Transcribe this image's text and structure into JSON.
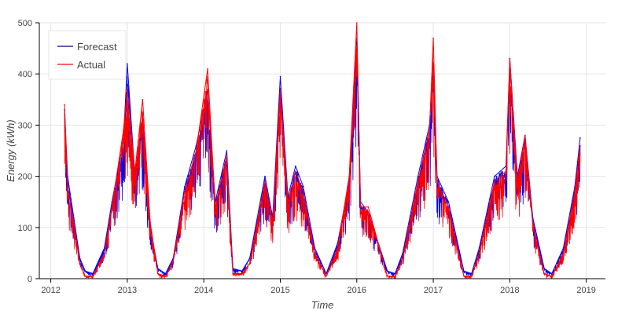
{
  "chart_data": {
    "type": "line",
    "title": "",
    "xlabel": "Time",
    "ylabel": "Energy (kWh)",
    "xlim": [
      2011.85,
      2019.25
    ],
    "ylim": [
      0,
      500
    ],
    "grid": true,
    "legend_position": "top-left",
    "x_ticks": [
      "2012",
      "2013",
      "2014",
      "2015",
      "2016",
      "2017",
      "2018",
      "2019"
    ],
    "y_ticks": [
      "0",
      "100",
      "200",
      "300",
      "400",
      "500"
    ],
    "colors": {
      "forecast": "#0000ff",
      "actual": "#ff0000",
      "legend_forecast_swatch": "#000080"
    },
    "series": [
      {
        "name": "Forecast",
        "color": "#0000ff",
        "x": [
          2012.18,
          2012.22,
          2012.3,
          2012.38,
          2012.45,
          2012.55,
          2012.7,
          2012.8,
          2012.95,
          2013.0,
          2013.1,
          2013.2,
          2013.3,
          2013.4,
          2013.5,
          2013.6,
          2013.75,
          2013.9,
          2014.05,
          2014.15,
          2014.3,
          2014.38,
          2014.5,
          2014.6,
          2014.8,
          2014.9,
          2015.0,
          2015.1,
          2015.2,
          2015.3,
          2015.45,
          2015.6,
          2015.75,
          2015.9,
          2016.0,
          2016.05,
          2016.15,
          2016.4,
          2016.5,
          2016.6,
          2016.8,
          2016.95,
          2017.0,
          2017.05,
          2017.2,
          2017.4,
          2017.5,
          2017.6,
          2017.8,
          2017.95,
          2018.0,
          2018.1,
          2018.2,
          2018.3,
          2018.45,
          2018.55,
          2018.7,
          2018.85,
          2018.92
        ],
        "values": [
          330,
          200,
          120,
          40,
          15,
          10,
          60,
          150,
          270,
          420,
          200,
          320,
          100,
          20,
          10,
          40,
          180,
          260,
          370,
          150,
          250,
          20,
          15,
          40,
          200,
          120,
          395,
          160,
          220,
          180,
          60,
          10,
          70,
          190,
          470,
          150,
          130,
          15,
          10,
          50,
          200,
          300,
          420,
          200,
          150,
          15,
          10,
          60,
          200,
          220,
          430,
          200,
          280,
          120,
          20,
          10,
          60,
          180,
          275
        ]
      },
      {
        "name": "Actual",
        "color": "#ff0000",
        "x": [
          2012.18,
          2012.22,
          2012.3,
          2012.38,
          2012.45,
          2012.55,
          2012.7,
          2012.8,
          2012.95,
          2013.0,
          2013.1,
          2013.2,
          2013.3,
          2013.4,
          2013.5,
          2013.6,
          2013.75,
          2013.9,
          2014.05,
          2014.15,
          2014.3,
          2014.38,
          2014.5,
          2014.6,
          2014.8,
          2014.9,
          2015.0,
          2015.1,
          2015.2,
          2015.3,
          2015.45,
          2015.6,
          2015.75,
          2015.9,
          2016.0,
          2016.05,
          2016.15,
          2016.4,
          2016.5,
          2016.6,
          2016.8,
          2016.95,
          2017.0,
          2017.05,
          2017.2,
          2017.4,
          2017.5,
          2017.6,
          2017.8,
          2017.95,
          2018.0,
          2018.1,
          2018.2,
          2018.3,
          2018.45,
          2018.55,
          2018.7,
          2018.85,
          2018.92
        ],
        "values": [
          340,
          180,
          110,
          30,
          5,
          5,
          50,
          140,
          290,
          370,
          210,
          350,
          110,
          10,
          5,
          35,
          170,
          250,
          410,
          140,
          240,
          10,
          10,
          30,
          190,
          110,
          370,
          150,
          210,
          170,
          50,
          5,
          60,
          200,
          500,
          140,
          140,
          5,
          5,
          40,
          190,
          290,
          470,
          190,
          140,
          5,
          5,
          50,
          190,
          210,
          430,
          190,
          280,
          110,
          10,
          5,
          50,
          170,
          260
        ]
      }
    ]
  }
}
